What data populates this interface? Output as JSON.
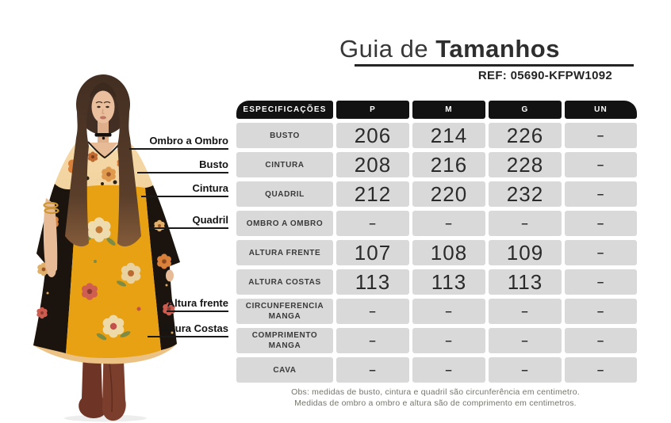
{
  "header": {
    "title_regular": "Guia de",
    "title_bold": "Tamanhos",
    "ref_label": "REF:",
    "ref_code": "05690-KFPW1092"
  },
  "diagram": {
    "description": "Modelo vestindo vestido kaftan floral mostarda e preto com botas marrom",
    "labels": [
      {
        "text": "Ombro a Ombro"
      },
      {
        "text": "Busto"
      },
      {
        "text": "Cintura"
      },
      {
        "text": "Quadril"
      },
      {
        "text": "Altura frente"
      },
      {
        "text": "Altura Costas"
      }
    ]
  },
  "table": {
    "headers": [
      "ESPECIFICAÇÕES",
      "P",
      "M",
      "G",
      "UN"
    ],
    "rows": [
      {
        "label": "BUSTO",
        "values": [
          "206",
          "214",
          "226",
          "–"
        ]
      },
      {
        "label": "CINTURA",
        "values": [
          "208",
          "216",
          "228",
          "–"
        ]
      },
      {
        "label": "QUADRIL",
        "values": [
          "212",
          "220",
          "232",
          "–"
        ]
      },
      {
        "label": "OMBRO A OMBRO",
        "values": [
          "–",
          "–",
          "–",
          "–"
        ]
      },
      {
        "label": "ALTURA FRENTE",
        "values": [
          "107",
          "108",
          "109",
          "–"
        ]
      },
      {
        "label": "ALTURA COSTAS",
        "values": [
          "113",
          "113",
          "113",
          "–"
        ]
      },
      {
        "label": "CIRCUNFERENCIA MANGA",
        "values": [
          "–",
          "–",
          "–",
          "–"
        ]
      },
      {
        "label": "COMPRIMENTO MANGA",
        "values": [
          "–",
          "–",
          "–",
          "–"
        ]
      },
      {
        "label": "CAVA",
        "values": [
          "–",
          "–",
          "–",
          "–"
        ]
      }
    ]
  },
  "footnote": {
    "line1": "Obs: medidas de busto, cintura e quadril são circunferência em centimetro.",
    "line2": "Medidas de ombro a ombro e altura são de comprimento em centimetros."
  },
  "colors": {
    "table_header_bg": "#121212",
    "table_cell_bg": "#d9d9d9",
    "text_dark": "#2b2b2b",
    "rule_black": "#242424",
    "dress_mustard": "#e7a112",
    "dress_peach": "#f2d3a0",
    "dress_black": "#1b140e",
    "boots_brown": "#7c3e2c"
  }
}
